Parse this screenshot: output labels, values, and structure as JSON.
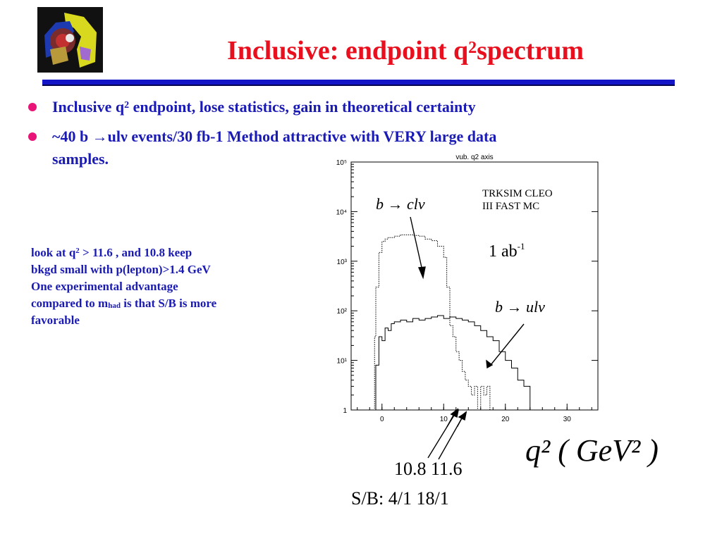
{
  "title": {
    "text": "Inclusive: endpoint q",
    "sup": "2",
    "tail": "spectrum"
  },
  "bullets": [
    {
      "pre": "Inclusive q",
      "sup": "2",
      "post": " endpoint, lose statistics, gain in theoretical certainty"
    },
    {
      "line1": "~40 b →ulν  events/30 fb-1 Method attractive with VERY large data",
      "line2": "samples."
    }
  ],
  "note": {
    "l1_pre": "look at q",
    "l1_sup": "2",
    "l1_post": " > 11.6 , and 10.8  keep",
    "l2": "bkgd small with p(lepton)>1.4 GeV",
    "l3": "One experimental advantage",
    "l4_pre": "compared to m",
    "l4_sub": "had",
    "l4_post": " is that S/B is more",
    "l5": "favorable"
  },
  "chart_data": {
    "type": "line",
    "title": "vub. q2 axis",
    "xlabel": "q²(GeV²)",
    "x_ticks": [
      "0",
      "10",
      "20",
      "30"
    ],
    "y_ticks": [
      "1",
      "10¹",
      "10²",
      "10³",
      "10⁴",
      "10⁵"
    ],
    "xlim": [
      -5,
      35
    ],
    "ylim": [
      1,
      100000
    ],
    "ylog": true,
    "series": [
      {
        "style": "dotted",
        "x": [
          -2.0,
          -1.2,
          -1.0,
          -0.5,
          0.0,
          0.5,
          1.0,
          2.0,
          3.0,
          4.0,
          5.0,
          6.0,
          7.0,
          8.0,
          9.0,
          10.0,
          10.5,
          11.0,
          11.5,
          12.0,
          12.5,
          13.0,
          13.5,
          14.0,
          14.5,
          15.0,
          15.5,
          16.0,
          16.5,
          17.0,
          17.5,
          18.0
        ],
        "y": [
          1,
          30,
          300,
          1500,
          2500,
          2800,
          3000,
          3200,
          3400,
          3400,
          3300,
          3200,
          2800,
          2600,
          2000,
          1200,
          300,
          50,
          30,
          15,
          10,
          6,
          4,
          3,
          2,
          3,
          1,
          3,
          2,
          3,
          1,
          1
        ]
      },
      {
        "style": "solid",
        "x": [
          -2.0,
          -1.0,
          -0.5,
          0.0,
          0.5,
          1.0,
          1.5,
          2.0,
          3.0,
          4.0,
          5.0,
          6.0,
          7.0,
          8.0,
          9.0,
          10.0,
          11.0,
          12.0,
          13.0,
          14.0,
          15.0,
          16.0,
          17.0,
          18.0,
          19.0,
          20.0,
          21.0,
          22.0,
          23.0,
          24.0
        ],
        "y": [
          1,
          8,
          30,
          25,
          45,
          40,
          55,
          60,
          65,
          60,
          70,
          65,
          70,
          75,
          80,
          70,
          75,
          70,
          65,
          60,
          50,
          40,
          30,
          25,
          15,
          10,
          7,
          4,
          3,
          1
        ]
      }
    ]
  },
  "annotations": {
    "bcl": "b → clν",
    "bul": "b → ulν",
    "trksim1": "TRKSIM CLEO",
    "trksim2": "III FAST MC",
    "lumi": "1  ab",
    "lumi_sup": "-1",
    "axis_big": "q² ( GeV² )",
    "cuts": "10.8 11.6",
    "sb": "S/B: 4/1 18/1"
  },
  "colors": {
    "title": "#e8101e",
    "text": "#1a1ab4",
    "bullet": "#e81478",
    "rule": "#1515c8"
  }
}
